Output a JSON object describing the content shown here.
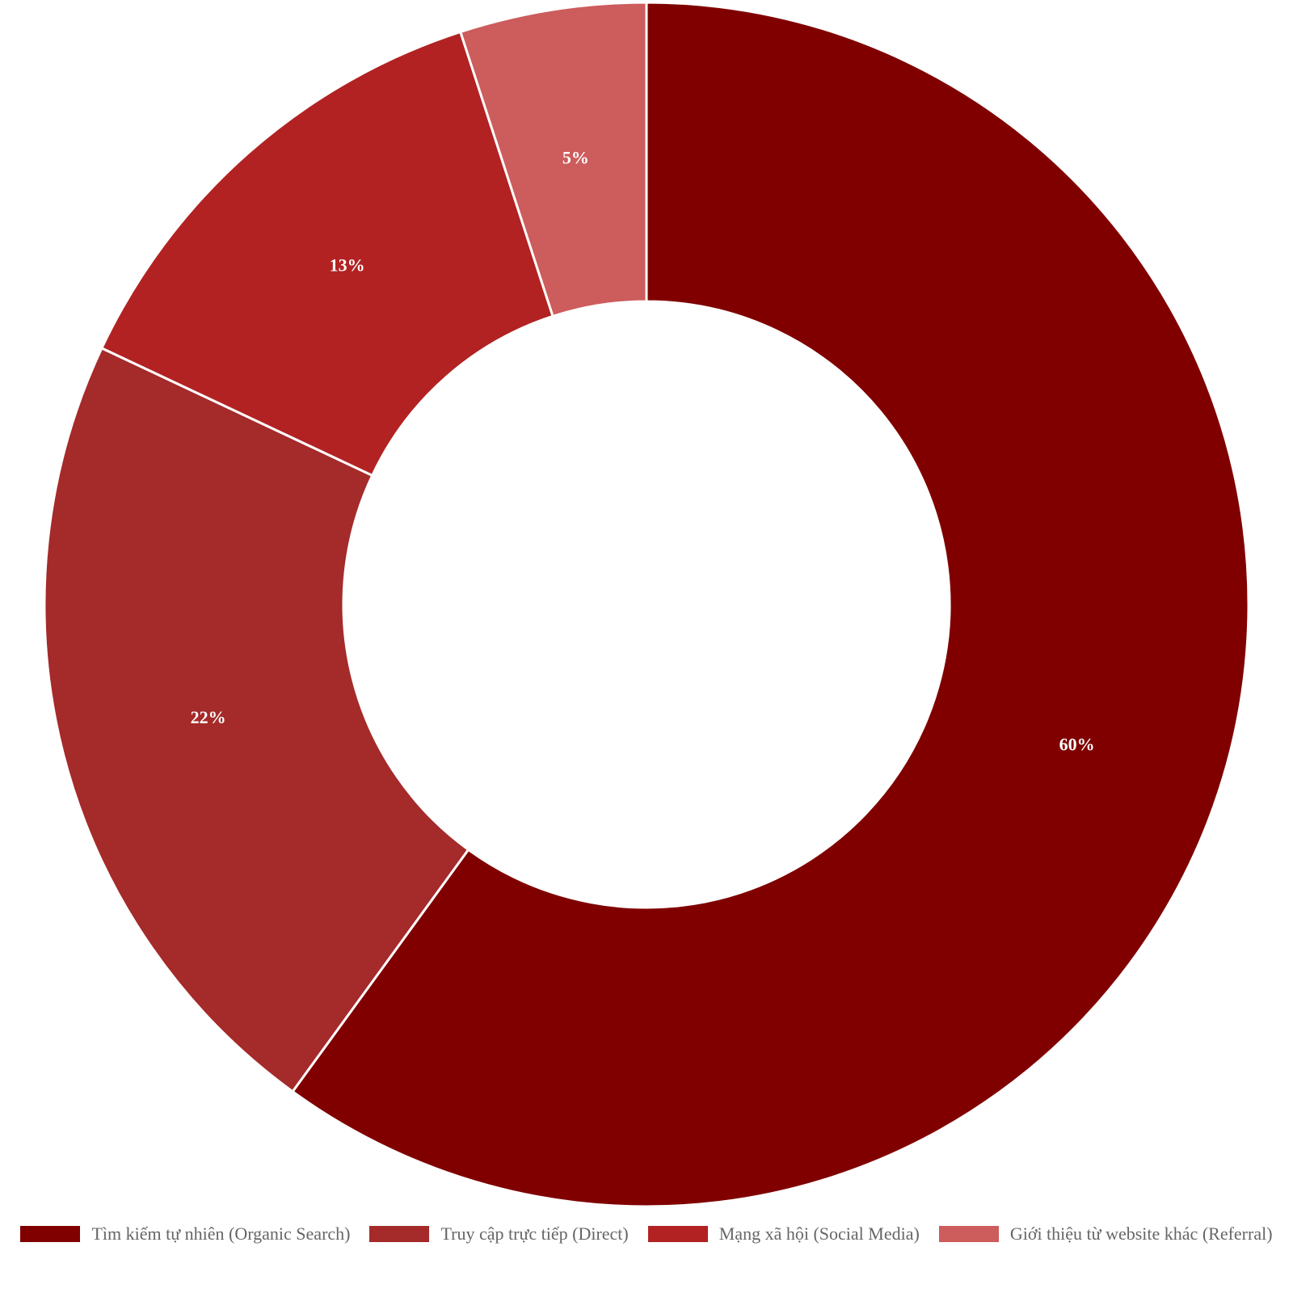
{
  "chart_data": {
    "type": "pie",
    "style": "donut",
    "categories": [
      "Tìm kiếm tự nhiên (Organic Search)",
      "Truy cập trực tiếp (Direct)",
      "Mạng xã hội (Social Media)",
      "Giới thiệu từ website khác (Referral)"
    ],
    "values": [
      60,
      22,
      13,
      5
    ],
    "labels": [
      "60%",
      "22%",
      "13%",
      "5%"
    ],
    "colors": [
      "#800000",
      "#A52A2A",
      "#B22222",
      "#CD5C5C"
    ],
    "title": "",
    "legend_position": "bottom",
    "start_angle": "top",
    "direction": "clockwise"
  },
  "legend": {
    "items": [
      "Tìm kiếm tự nhiên (Organic Search)",
      "Truy cập trực tiếp (Direct)",
      "Mạng xã hội (Social Media)",
      "Giới thiệu từ website khác (Referral)"
    ]
  }
}
